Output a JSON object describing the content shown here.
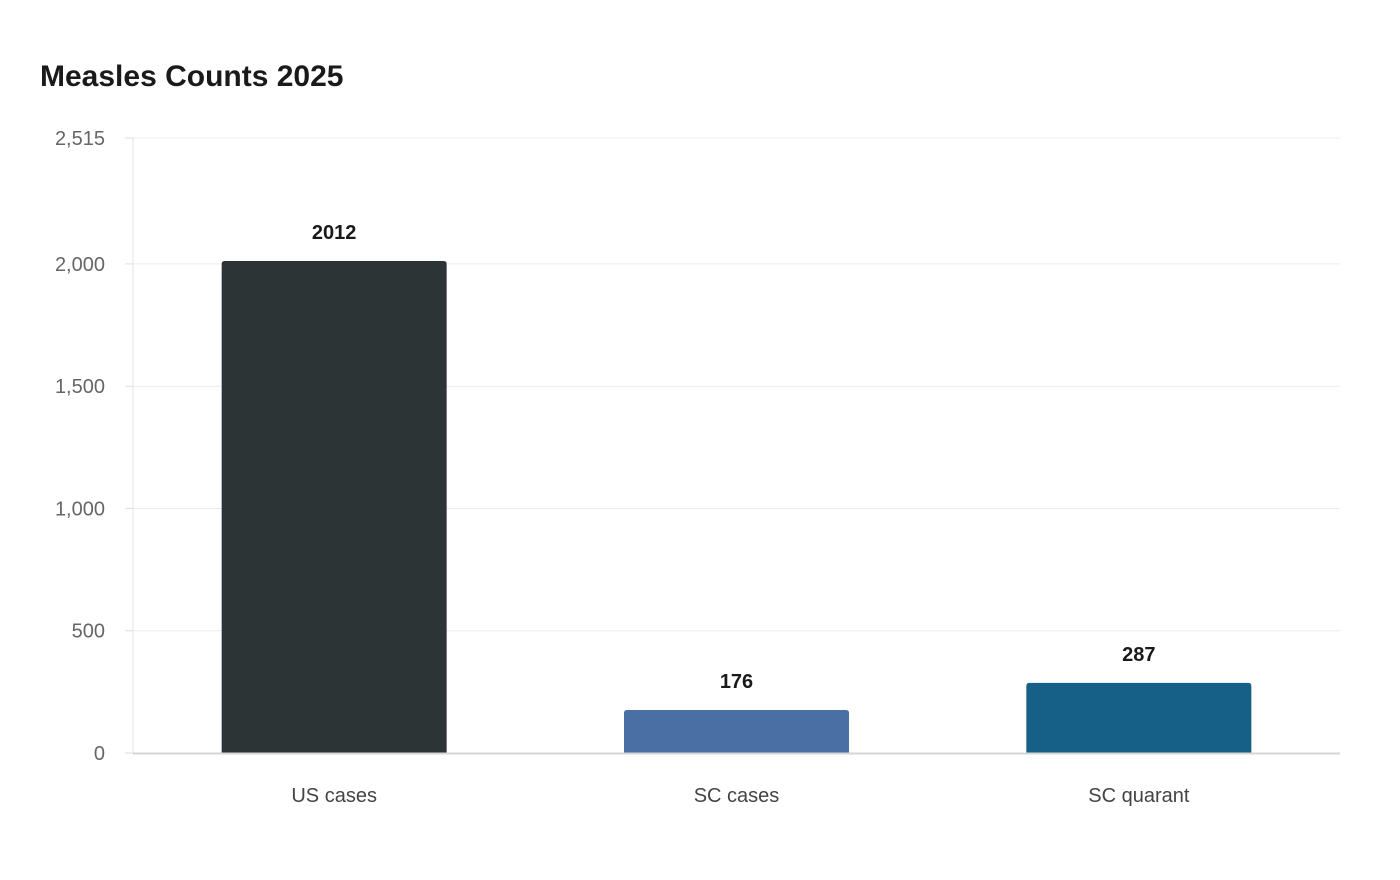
{
  "chart_data": {
    "type": "bar",
    "title": "Measles Counts 2025",
    "xlabel": "",
    "ylabel": "",
    "categories": [
      "US cases",
      "SC cases",
      "SC quarant"
    ],
    "values": [
      2012,
      176,
      287
    ],
    "data_labels": [
      "2012",
      "176",
      "287"
    ],
    "colors": [
      "#2d3436",
      "#4a6fa5",
      "#166088"
    ],
    "ylim": [
      0,
      2515
    ],
    "yticks": [
      0,
      500,
      1000,
      1500,
      2000,
      2515
    ],
    "ytick_labels": [
      "0",
      "500",
      "1,000",
      "1,500",
      "2,000",
      "2,515"
    ],
    "grid": true,
    "legend": "none"
  }
}
